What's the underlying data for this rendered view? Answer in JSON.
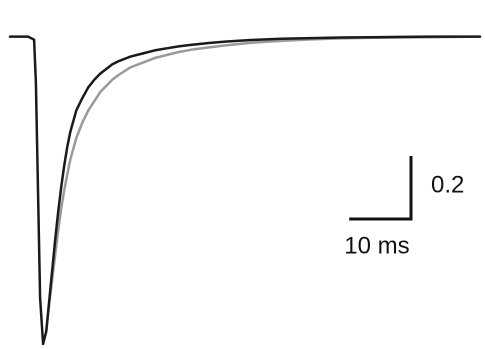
{
  "chart_data": {
    "type": "line",
    "title": "",
    "xlabel": "",
    "ylabel": "",
    "grid": false,
    "legend": "none",
    "xlim": [
      0,
      78
    ],
    "ylim": [
      -1.0,
      0.08
    ],
    "series": [
      {
        "color": "#1a1a1a",
        "x": [
          0,
          1,
          2,
          3,
          4,
          4.3,
          4.7,
          5,
          5.5,
          6,
          6.5,
          7,
          7.5,
          8,
          8.5,
          9,
          9.5,
          10,
          11,
          12,
          13,
          14,
          15,
          16,
          17,
          18,
          20,
          22,
          24,
          26,
          28,
          30,
          33,
          36,
          40,
          45,
          50,
          55,
          60,
          65,
          70,
          75,
          78
        ],
        "y": [
          0.0,
          0.0,
          0.0,
          0.0,
          -0.01,
          -0.15,
          -0.55,
          -0.85,
          -1.0,
          -0.96,
          -0.86,
          -0.76,
          -0.66,
          -0.57,
          -0.49,
          -0.42,
          -0.36,
          -0.31,
          -0.24,
          -0.2,
          -0.165,
          -0.14,
          -0.12,
          -0.105,
          -0.09,
          -0.08,
          -0.065,
          -0.055,
          -0.045,
          -0.038,
          -0.032,
          -0.027,
          -0.021,
          -0.016,
          -0.011,
          -0.007,
          -0.005,
          -0.003,
          -0.002,
          -0.001,
          0.0,
          0.0,
          0.0
        ]
      },
      {
        "color": "#9a9a9a",
        "x": [
          6,
          6.5,
          7,
          7.5,
          8,
          8.5,
          9,
          9.5,
          10,
          11,
          12,
          13,
          14,
          15,
          16,
          17,
          18,
          20,
          22,
          24,
          26,
          28,
          30,
          33,
          36,
          40,
          45,
          50,
          55,
          60,
          65,
          70,
          75,
          78
        ],
        "y": [
          -0.96,
          -0.87,
          -0.79,
          -0.71,
          -0.63,
          -0.56,
          -0.5,
          -0.45,
          -0.4,
          -0.33,
          -0.28,
          -0.24,
          -0.21,
          -0.18,
          -0.16,
          -0.14,
          -0.125,
          -0.1,
          -0.085,
          -0.07,
          -0.06,
          -0.05,
          -0.043,
          -0.035,
          -0.028,
          -0.02,
          -0.014,
          -0.009,
          -0.006,
          -0.004,
          -0.003,
          -0.002,
          -0.001,
          0.0
        ]
      }
    ],
    "scale_bar": {
      "y_value": 0.2,
      "y_label": "0.2",
      "x_value": 10,
      "x_label": "10 ms"
    }
  }
}
